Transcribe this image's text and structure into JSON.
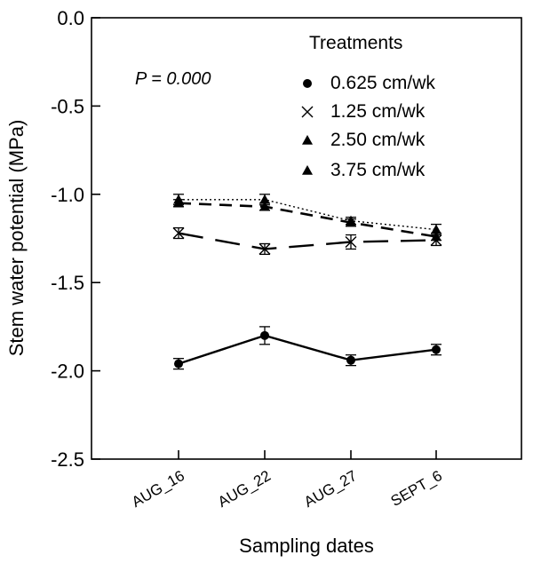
{
  "chart_data": {
    "type": "line",
    "title": "",
    "xlabel": "Sampling dates",
    "ylabel": "Stem water potential (MPa)",
    "categories": [
      "AUG_16",
      "AUG_22",
      "AUG_27",
      "SEPT_6"
    ],
    "ylim": [
      -2.5,
      0.0
    ],
    "yticks": [
      "0.0",
      "-0.5",
      "-1.0",
      "-1.5",
      "-2.0",
      "-2.5"
    ],
    "ytick_values": [
      0.0,
      -0.5,
      -1.0,
      -1.5,
      -2.0,
      -2.5
    ],
    "annotation": "P = 0.000",
    "legend_title": "Treatments",
    "legend_position": "top-right",
    "grid": false,
    "series": [
      {
        "name": "0.625 cm/wk",
        "marker": "circle",
        "line": "solid",
        "values": [
          -1.96,
          -1.8,
          -1.94,
          -1.88
        ],
        "errors": [
          0.03,
          0.05,
          0.03,
          0.03
        ]
      },
      {
        "name": "1.25 cm/wk",
        "marker": "x",
        "line": "long-dash",
        "values": [
          -1.22,
          -1.31,
          -1.27,
          -1.26
        ],
        "errors": [
          0.03,
          0.03,
          0.04,
          0.03
        ]
      },
      {
        "name": "2.50 cm/wk",
        "marker": "triangle",
        "line": "dash",
        "values": [
          -1.05,
          -1.07,
          -1.16,
          -1.24
        ],
        "errors": [
          0.02,
          0.02,
          0.02,
          0.02
        ]
      },
      {
        "name": "3.75 cm/wk",
        "marker": "triangle",
        "line": "dotted",
        "values": [
          -1.03,
          -1.03,
          -1.15,
          -1.2
        ],
        "errors": [
          0.03,
          0.03,
          0.02,
          0.03
        ]
      }
    ]
  }
}
